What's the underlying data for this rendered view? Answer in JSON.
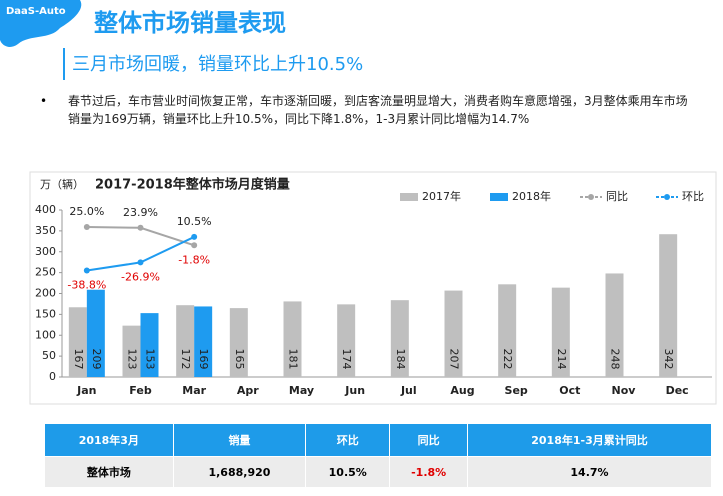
{
  "logo": "DaaS-Auto",
  "header": {
    "title": "整体市场销量表现",
    "subtitle": "三月市场回暖，销量环比上升10.5%"
  },
  "bullet": "春节过后，车市营业时间恢复正常，车市逐渐回暖，到店客流量明显增大，消费者购车意愿增强，3月整体乘用车市场销量为169万辆，销量环比上升10.5%，同比下降1.8%，1-3月累计同比增幅为14.7%",
  "chart_data": {
    "type": "bar",
    "title": "2017-2018年整体市场月度销量",
    "y_label": "万（辆）",
    "categories": [
      "Jan",
      "Feb",
      "Mar",
      "Apr",
      "May",
      "Jun",
      "Jul",
      "Aug",
      "Sep",
      "Oct",
      "Nov",
      "Dec"
    ],
    "series": [
      {
        "name": "2017年",
        "type": "bar",
        "color": "#bfbfbf",
        "values": [
          167,
          123,
          172,
          165,
          181,
          174,
          184,
          207,
          222,
          214,
          248,
          342
        ]
      },
      {
        "name": "2018年",
        "type": "bar",
        "color": "#1e9bf0",
        "values": [
          209,
          153,
          169,
          null,
          null,
          null,
          null,
          null,
          null,
          null,
          null,
          null
        ]
      },
      {
        "name": "同比",
        "type": "line",
        "axis": "y2",
        "color": "#a6a6a6",
        "dash": true,
        "values": [
          25.0,
          23.9,
          -1.8,
          null,
          null,
          null,
          null,
          null,
          null,
          null,
          null,
          null
        ],
        "value_labels": [
          "25.0%",
          "23.9%",
          "-1.8%",
          null,
          null,
          null,
          null,
          null,
          null,
          null,
          null,
          null
        ]
      },
      {
        "name": "环比",
        "type": "line",
        "axis": "y2",
        "color": "#1e9bf0",
        "dash": true,
        "values": [
          -38.8,
          -26.9,
          10.5,
          null,
          null,
          null,
          null,
          null,
          null,
          null,
          null,
          null
        ],
        "value_labels": [
          "-38.8%",
          "-26.9%",
          "10.5%",
          null,
          null,
          null,
          null,
          null,
          null,
          null,
          null,
          null
        ]
      }
    ],
    "ylim": [
      0,
      400
    ],
    "yticks": [
      0,
      50,
      100,
      150,
      200,
      250,
      300,
      350,
      400
    ],
    "y2lim": [
      -195,
      50
    ],
    "grid": false,
    "legend": "top-right"
  },
  "table": {
    "header": [
      "2018年3月",
      "销量",
      "环比",
      "同比",
      "2018年1-3月累计同比"
    ],
    "rows": [
      [
        "整体市场",
        "1,688,920",
        "10.5%",
        "-1.8%",
        "14.7%"
      ]
    ]
  }
}
